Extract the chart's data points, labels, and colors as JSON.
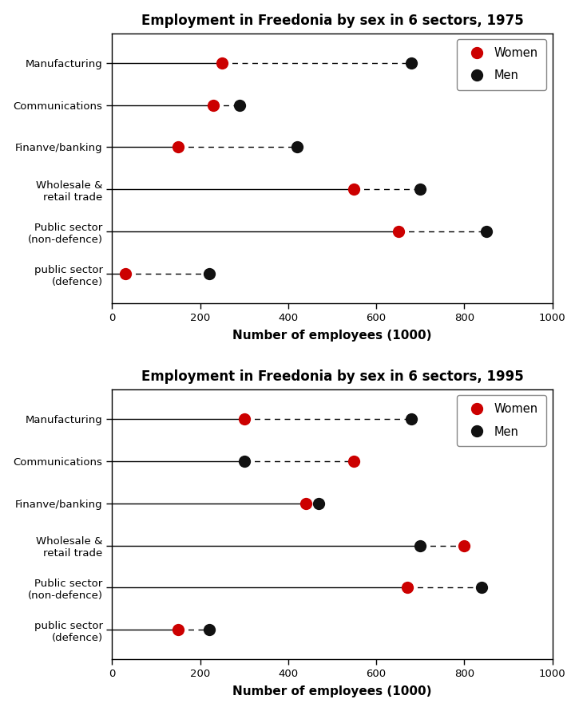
{
  "chart1": {
    "title": "Employment in Freedonia by sex in 6 sectors, 1975",
    "categories": [
      "Manufacturing",
      "Communications",
      "Finanve/banking",
      "Wholesale &\nretail trade",
      "Public sector\n(non-defence)",
      "public sector\n(defence)"
    ],
    "women": [
      250,
      230,
      150,
      550,
      650,
      30
    ],
    "men": [
      680,
      290,
      420,
      700,
      850,
      220
    ]
  },
  "chart2": {
    "title": "Employment in Freedonia by sex in 6 sectors, 1995",
    "categories": [
      "Manufacturing",
      "Communications",
      "Finanve/banking",
      "Wholesale &\nretail trade",
      "Public sector\n(non-defence)",
      "public sector\n(defence)"
    ],
    "women": [
      300,
      550,
      440,
      800,
      670,
      150
    ],
    "men": [
      680,
      300,
      470,
      700,
      840,
      220
    ]
  },
  "xlabel": "Number of employees (1000)",
  "xlim": [
    0,
    1000
  ],
  "xticks": [
    0,
    200,
    400,
    600,
    800,
    1000
  ],
  "women_color": "#cc0000",
  "men_color": "#111111",
  "marker_size": 11,
  "bg_color": "#ffffff",
  "title_fontsize": 12,
  "label_fontsize": 9.5,
  "tick_fontsize": 9.5,
  "xlabel_fontsize": 11
}
